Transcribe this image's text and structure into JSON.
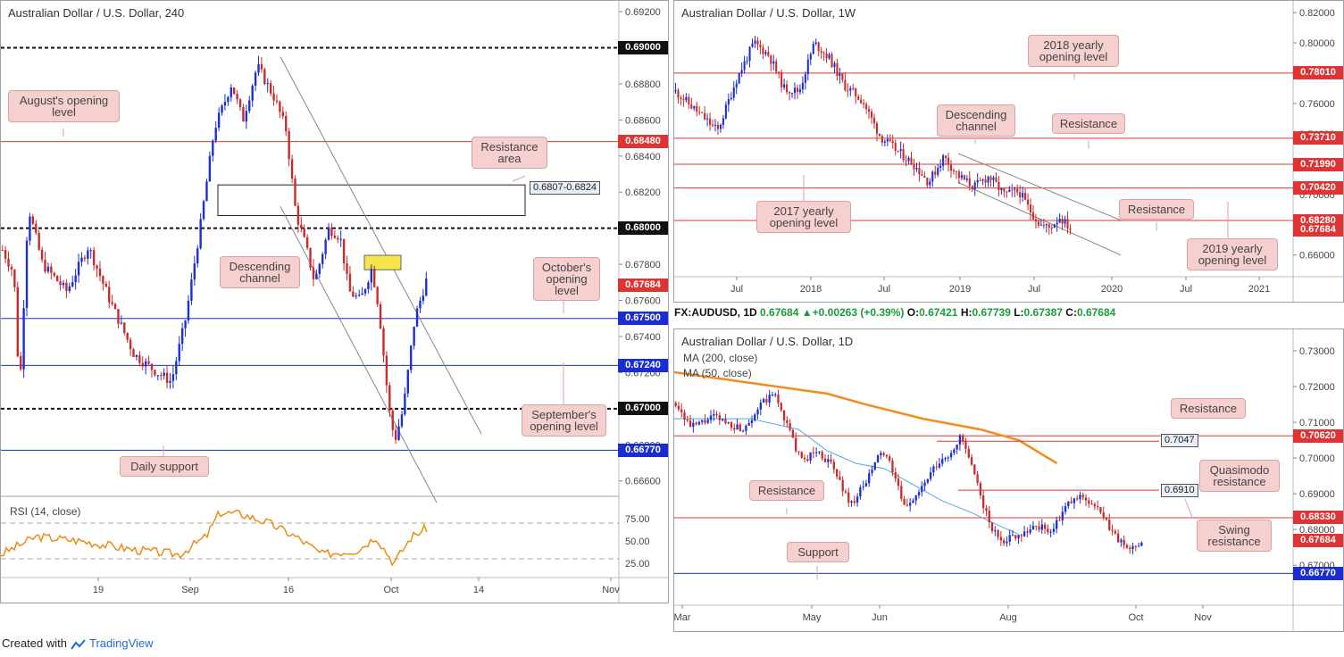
{
  "colors": {
    "red_level": "#e03434",
    "blue_level": "#1a2dd1",
    "black_level": "#111111",
    "bull": "#1b2fd3",
    "bear": "#c92a2a",
    "rsi": "#f08a18",
    "ma200": "#f58a1f",
    "ma50": "#4fa9e3",
    "note_bg": "#f6cfcf"
  },
  "footer": {
    "prefix": "Created with",
    "brand": "TradingView",
    "logo_icon": "tradingview-logo-icon"
  },
  "info_bar": {
    "symbol": "FX:AUDUSD, 1D",
    "last": "0.67684",
    "arrow": "▲",
    "change": "+0.00263 (+0.39%)",
    "o_label": "O:",
    "o": "0.67421",
    "h_label": "H:",
    "h": "0.67739",
    "l_label": "L:",
    "l": "0.67387",
    "c_label": "C:",
    "c": "0.67684"
  },
  "panels": {
    "h4": {
      "title": "Australian Dollar / U.S. Dollar, 240",
      "tags": [
        {
          "v": "0.69000",
          "c": "black",
          "y": 0.69
        },
        {
          "v": "0.68480",
          "c": "red",
          "y": 0.6848
        },
        {
          "v": "0.68000",
          "c": "black",
          "y": 0.68
        },
        {
          "v": "0.67684",
          "c": "red",
          "y": 0.67684
        },
        {
          "v": "0.67500",
          "c": "blue",
          "y": 0.675
        },
        {
          "v": "0.67240",
          "c": "blue",
          "y": 0.6724
        },
        {
          "v": "0.67000",
          "c": "black",
          "y": 0.67
        },
        {
          "v": "0.66770",
          "c": "blue",
          "y": 0.6677
        }
      ],
      "notes": {
        "august": "August's opening level",
        "resistance_area": "Resistance area",
        "range": "0.6807-0.6824",
        "descending": "Descending channel",
        "october": "October's opening level",
        "september": "September's opening level",
        "daily_support": "Daily support"
      },
      "rsi_label": "RSI (14, close)",
      "rsi_ticks": [
        "75.00",
        "50.00",
        "25.00"
      ]
    },
    "weekly": {
      "title": "Australian Dollar / U.S. Dollar, 1W",
      "tags": [
        {
          "v": "0.78010",
          "c": "red",
          "y": 0.7801
        },
        {
          "v": "0.73710",
          "c": "red",
          "y": 0.7371
        },
        {
          "v": "0.71990",
          "c": "red",
          "y": 0.7199
        },
        {
          "v": "0.70420",
          "c": "red",
          "y": 0.7042
        },
        {
          "v": "0.68280",
          "c": "red",
          "y": 0.6828
        },
        {
          "v": "0.67684",
          "c": "red",
          "y": 0.67684
        }
      ],
      "notes": {
        "y2018": "2018 yearly opening level",
        "descending": "Descending channel",
        "resistance_a": "Resistance",
        "resistance_b": "Resistance",
        "y2017": "2017 yearly opening level",
        "y2019": "2019 yearly opening level"
      }
    },
    "daily": {
      "title": "Australian Dollar / U.S. Dollar, 1D",
      "ma200": "MA (200, close)",
      "ma50": "MA (50, close)",
      "tags": [
        {
          "v": "0.70620",
          "c": "red",
          "y": 0.7062
        },
        {
          "v": "0.68330",
          "c": "red",
          "y": 0.6833
        },
        {
          "v": "0.67684",
          "c": "red",
          "y": 0.67684
        },
        {
          "v": "0.66770",
          "c": "blue",
          "y": 0.6677
        }
      ],
      "notes": {
        "resistance_top": "Resistance",
        "quasimodo": "Quasimodo resistance",
        "q_value": "0.7047",
        "swing": "Swing resistance",
        "s_value": "0.6910",
        "resistance_left": "Resistance",
        "support": "Support"
      }
    }
  },
  "chart_data": [
    {
      "id": "h4",
      "type": "candlestick",
      "title": "Australian Dollar / U.S. Dollar, 240",
      "x_ticks": [
        "19",
        "Sep",
        "16",
        "Oct",
        "14",
        "Nov"
      ],
      "y_ticks": [
        "0.69200",
        "0.69000",
        "0.68800",
        "0.68600",
        "0.68400",
        "0.68200",
        "0.68000",
        "0.67800",
        "0.67600",
        "0.67400",
        "0.67200",
        "0.67000",
        "0.66800",
        "0.66600"
      ],
      "ylim": [
        0.6648,
        0.6922
      ],
      "levels": [
        0.69,
        0.6848,
        0.68,
        0.675,
        0.6724,
        0.67,
        0.6677
      ],
      "rsi": {
        "label": "RSI (14, close)",
        "ylim": [
          10,
          90
        ],
        "bands": [
          70,
          30
        ],
        "ticks": [
          75,
          50,
          25
        ]
      },
      "path": [
        [
          0,
          0.6788
        ],
        [
          8,
          0.6775
        ],
        [
          12,
          0.6708
        ],
        [
          18,
          0.6812
        ],
        [
          28,
          0.678
        ],
        [
          45,
          0.6765
        ],
        [
          60,
          0.679
        ],
        [
          75,
          0.676
        ],
        [
          92,
          0.673
        ],
        [
          108,
          0.672
        ],
        [
          118,
          0.6715
        ],
        [
          128,
          0.675
        ],
        [
          138,
          0.68
        ],
        [
          148,
          0.6855
        ],
        [
          160,
          0.688
        ],
        [
          168,
          0.686
        ],
        [
          178,
          0.689
        ],
        [
          190,
          0.6872
        ],
        [
          198,
          0.6855
        ],
        [
          205,
          0.6808
        ],
        [
          212,
          0.679
        ],
        [
          218,
          0.677
        ],
        [
          228,
          0.68
        ],
        [
          236,
          0.6795
        ],
        [
          242,
          0.6765
        ],
        [
          250,
          0.676
        ],
        [
          258,
          0.6778
        ],
        [
          263,
          0.6755
        ],
        [
          270,
          0.67
        ],
        [
          274,
          0.6682
        ],
        [
          280,
          0.67
        ],
        [
          288,
          0.675
        ],
        [
          296,
          0.6771
        ]
      ]
    },
    {
      "id": "weekly",
      "type": "candlestick",
      "title": "Australian Dollar / U.S. Dollar, 1W",
      "x_ticks": [
        "Jul",
        "2018",
        "Jul",
        "2019",
        "Jul",
        "2020",
        "Jul",
        "2021"
      ],
      "y_ticks": [
        "0.82000",
        "0.80000",
        "0.78000",
        "0.76000",
        "0.74000",
        "0.72000",
        "0.70000",
        "0.68000",
        "0.66000"
      ],
      "ylim": [
        0.651,
        0.823
      ],
      "levels": [
        0.7801,
        0.7371,
        0.7199,
        0.7042,
        0.6828
      ],
      "path": [
        [
          0,
          0.768
        ],
        [
          14,
          0.755
        ],
        [
          28,
          0.742
        ],
        [
          40,
          0.775
        ],
        [
          52,
          0.8
        ],
        [
          62,
          0.792
        ],
        [
          72,
          0.77
        ],
        [
          82,
          0.768
        ],
        [
          92,
          0.8
        ],
        [
          102,
          0.79
        ],
        [
          112,
          0.772
        ],
        [
          124,
          0.762
        ],
        [
          136,
          0.738
        ],
        [
          148,
          0.728
        ],
        [
          158,
          0.72
        ],
        [
          168,
          0.708
        ],
        [
          178,
          0.725
        ],
        [
          188,
          0.712
        ],
        [
          198,
          0.705
        ],
        [
          208,
          0.712
        ],
        [
          218,
          0.7
        ],
        [
          228,
          0.702
        ],
        [
          235,
          0.69
        ],
        [
          242,
          0.68
        ],
        [
          248,
          0.678
        ],
        [
          255,
          0.685
        ],
        [
          262,
          0.6775
        ]
      ]
    },
    {
      "id": "daily",
      "type": "candlestick",
      "title": "Australian Dollar / U.S. Dollar, 1D",
      "x_ticks": [
        "Mar",
        "May",
        "Jun",
        "Aug",
        "Oct",
        "Nov"
      ],
      "y_ticks": [
        "0.73000",
        "0.72000",
        "0.71000",
        "0.70000",
        "0.69000",
        "0.68000",
        "0.67000"
      ],
      "ylim": [
        0.6648,
        0.7335
      ],
      "levels": [
        0.7062,
        0.6833,
        0.6677
      ],
      "ma200": {
        "label": "MA (200, close)",
        "points": [
          [
            0,
            0.724
          ],
          [
            40,
            0.721
          ],
          [
            80,
            0.718
          ],
          [
            100,
            0.715
          ],
          [
            130,
            0.711
          ],
          [
            160,
            0.708
          ],
          [
            180,
            0.705
          ],
          [
            200,
            0.6985
          ]
        ]
      },
      "ma50": {
        "label": "MA (50, close)",
        "points": [
          [
            0,
            0.711
          ],
          [
            40,
            0.711
          ],
          [
            65,
            0.708
          ],
          [
            80,
            0.702
          ],
          [
            95,
            0.6985
          ],
          [
            110,
            0.697
          ],
          [
            125,
            0.6925
          ],
          [
            140,
            0.688
          ],
          [
            155,
            0.6848
          ],
          [
            168,
            0.6815
          ],
          [
            180,
            0.6787
          ]
        ]
      },
      "path": [
        [
          0,
          0.7155
        ],
        [
          8,
          0.7085
        ],
        [
          20,
          0.7115
        ],
        [
          35,
          0.708
        ],
        [
          45,
          0.715
        ],
        [
          52,
          0.718
        ],
        [
          58,
          0.71
        ],
        [
          66,
          0.699
        ],
        [
          74,
          0.702
        ],
        [
          82,
          0.698
        ],
        [
          92,
          0.687
        ],
        [
          100,
          0.693
        ],
        [
          108,
          0.702
        ],
        [
          114,
          0.697
        ],
        [
          120,
          0.686
        ],
        [
          128,
          0.6905
        ],
        [
          136,
          0.697
        ],
        [
          144,
          0.701
        ],
        [
          150,
          0.706
        ],
        [
          154,
          0.7
        ],
        [
          160,
          0.69
        ],
        [
          166,
          0.68
        ],
        [
          172,
          0.677
        ],
        [
          182,
          0.679
        ],
        [
          190,
          0.681
        ],
        [
          198,
          0.6795
        ],
        [
          206,
          0.687
        ],
        [
          214,
          0.6895
        ],
        [
          222,
          0.6855
        ],
        [
          230,
          0.679
        ],
        [
          238,
          0.674
        ],
        [
          245,
          0.677
        ]
      ]
    }
  ]
}
